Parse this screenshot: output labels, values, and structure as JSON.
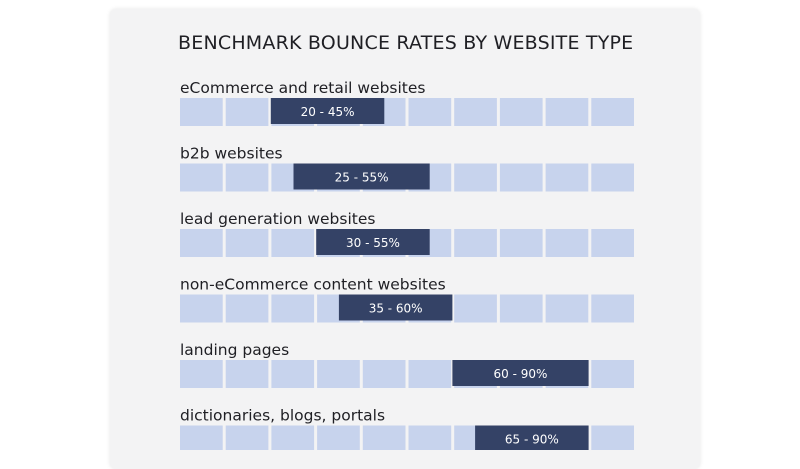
{
  "chart_data": {
    "type": "bar",
    "title": "BENCHMARK BOUNCE RATES BY WEBSITE TYPE",
    "unit": "%",
    "xlim": [
      0,
      100
    ],
    "categories": [
      "eCommerce and retail websites",
      "b2b websites",
      "lead generation websites",
      "non-eCommerce content websites",
      "landing pages",
      "dictionaries, blogs, portals"
    ],
    "ranges": [
      {
        "low": 20,
        "high": 45,
        "label": "20 - 45%"
      },
      {
        "low": 25,
        "high": 55,
        "label": "25 - 55%"
      },
      {
        "low": 30,
        "high": 55,
        "label": "30 - 55%"
      },
      {
        "low": 35,
        "high": 60,
        "label": "35 - 60%"
      },
      {
        "low": 60,
        "high": 90,
        "label": "60 - 90%"
      },
      {
        "low": 65,
        "high": 90,
        "label": "65 - 90%"
      }
    ],
    "grid_cells": 10,
    "grid": true,
    "legend": "none",
    "colors": {
      "background_cell": "#c7d3ed",
      "range_bar": "#344266",
      "range_text": "#ffffff",
      "card": "#f3f3f4"
    }
  }
}
